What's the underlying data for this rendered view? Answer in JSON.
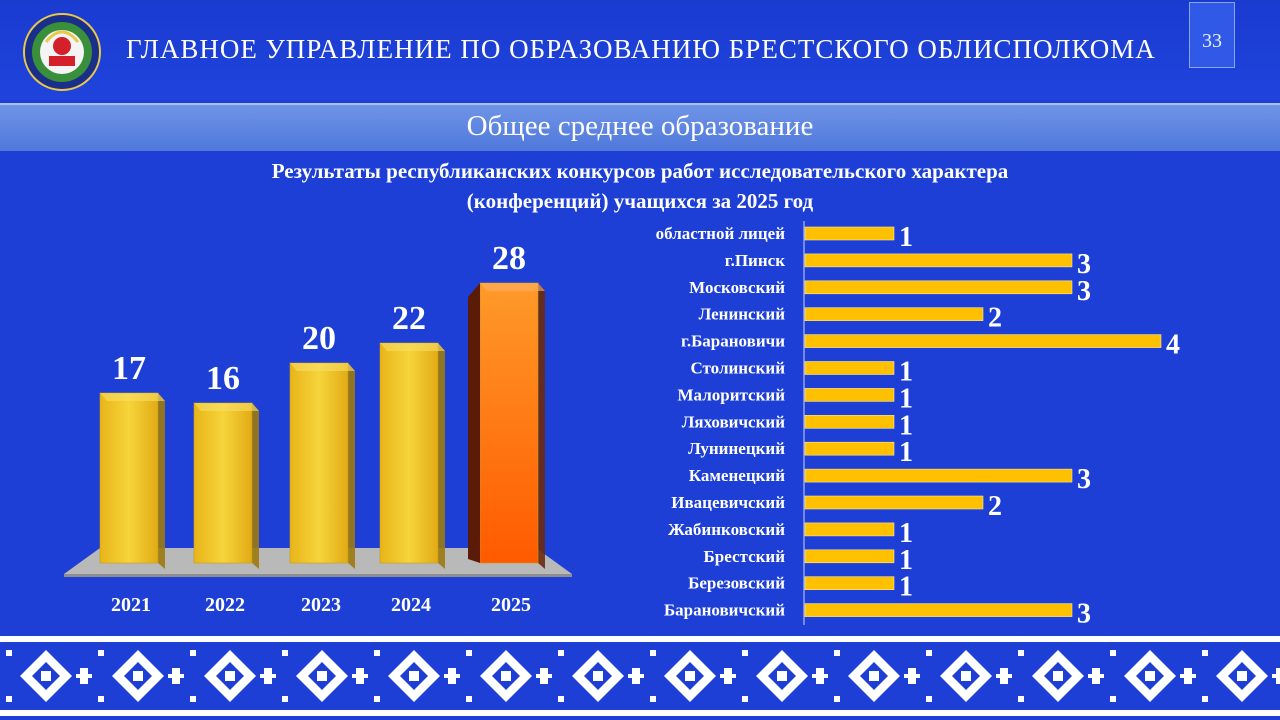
{
  "header": {
    "org_title": "ГЛАВНОЕ УПРАВЛЕНИЕ ПО ОБРАЗОВАНИЮ БРЕСТСКОГО ОБЛИСПОЛКОМА",
    "page_number": "33"
  },
  "section_title": "Общее среднее образование",
  "chart_title_line1": "Результаты  республиканских конкурсов работ исследовательского характера",
  "chart_title_line2": "(конференций) учащихся за 2025 год",
  "colors": {
    "background": "#1d3fd6",
    "bar_yellow": "#f0c419",
    "bar_orange": "#ff6a00",
    "hbar": "#ffc000"
  },
  "chart_data": [
    {
      "type": "bar",
      "categories": [
        "2021",
        "2022",
        "2023",
        "2024",
        "2025"
      ],
      "values": [
        17,
        16,
        20,
        22,
        28
      ],
      "ylim": [
        0,
        30
      ]
    },
    {
      "type": "bar",
      "orientation": "horizontal",
      "categories": [
        "областной лицей",
        "г.Пинск",
        "Московский",
        "Ленинский",
        "г.Барановичи",
        "Столинский",
        "Малоритский",
        "Ляховичский",
        "Лунинецкий",
        "Каменецкий",
        "Ивацевичский",
        "Жабинковский",
        "Брестский",
        "Березовский",
        "Барановичский"
      ],
      "values": [
        1,
        3,
        3,
        2,
        4,
        1,
        1,
        1,
        1,
        3,
        2,
        1,
        1,
        1,
        3
      ],
      "xlim": [
        0,
        4
      ]
    }
  ]
}
